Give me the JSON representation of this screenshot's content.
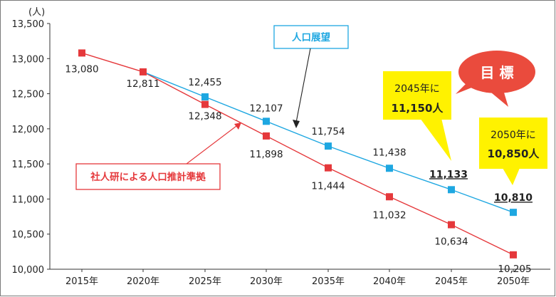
{
  "chart_data": {
    "type": "line",
    "y_unit": "(人)",
    "categories": [
      "2015年",
      "2020年",
      "2025年",
      "2030年",
      "2035年",
      "2040年",
      "2045年",
      "2050年"
    ],
    "ylim": [
      10000,
      13500
    ],
    "yticks": [
      10000,
      10500,
      11000,
      11500,
      12000,
      12500,
      13000,
      13500
    ],
    "ytick_labels": [
      "10,000",
      "10,500",
      "11,000",
      "11,500",
      "12,000",
      "12,500",
      "13,000",
      "13,500"
    ],
    "grid": false,
    "series": [
      {
        "key": "forecast",
        "name": "社人研による人口推計準拠",
        "color": "#e5383b",
        "values": [
          13080,
          12811,
          12348,
          11898,
          11444,
          11032,
          10634,
          10205
        ],
        "labels": [
          "13,080",
          "12,811",
          "12,348",
          "11,898",
          "11,444",
          "11,032",
          "10,634",
          "10,205"
        ]
      },
      {
        "key": "outlook",
        "name": "人口展望",
        "color": "#1ea7e1",
        "values": [
          null,
          12811,
          12455,
          12107,
          11754,
          11438,
          11133,
          10810
        ],
        "labels": [
          null,
          null,
          "12,455",
          "12,107",
          "11,754",
          "11,438",
          "11,133",
          "10,810"
        ]
      }
    ],
    "annotations": {
      "target_bubble": "目 標",
      "target_2045_line1": "2045年に",
      "target_2045_line2": "11,150人",
      "target_2050_line1": "2050年に",
      "target_2050_line2": "10,850人"
    }
  },
  "colors": {
    "forecast_red": "#e5383b",
    "outlook_blue": "#1ea7e1",
    "target_yellow": "#fff200",
    "bubble_red": "#ea4b3d"
  }
}
